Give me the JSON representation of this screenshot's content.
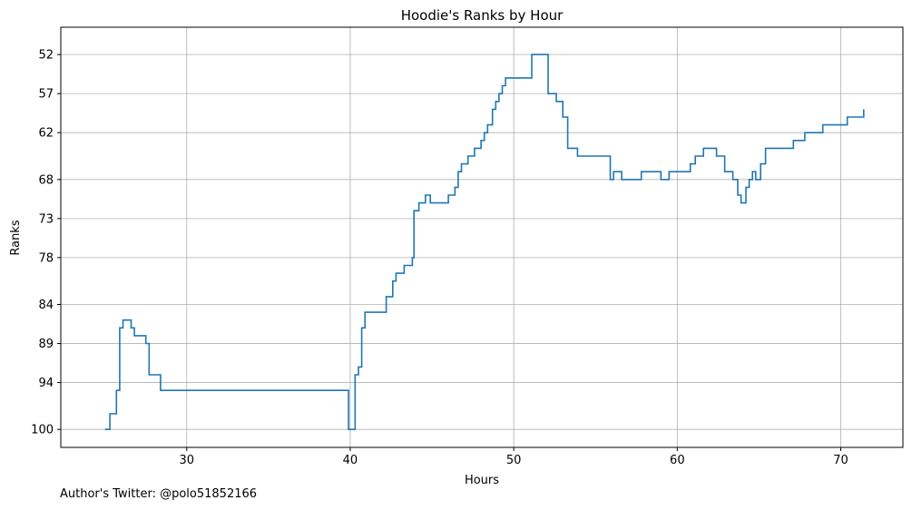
{
  "footer_text": "Author's Twitter: @polo51852166",
  "chart_data": {
    "type": "line",
    "step": true,
    "title": "Hoodie's Ranks by Hour",
    "xlabel": "Hours",
    "ylabel": "Ranks",
    "xlim": [
      22.3,
      73.8
    ],
    "ylim": [
      102.3,
      48.5
    ],
    "xticks": [
      30,
      40,
      50,
      60,
      70
    ],
    "yticks": [
      52,
      57,
      62,
      68,
      73,
      78,
      84,
      89,
      94,
      100
    ],
    "grid": true,
    "color": "#1f77b4",
    "series": [
      {
        "x": [
          25.0,
          25.3,
          25.7,
          25.9,
          26.1,
          26.6,
          26.8,
          27.2,
          27.5,
          27.7,
          28.4,
          34.1,
          39.9,
          40.3,
          40.5,
          40.7,
          40.9,
          41.9,
          42.2,
          42.6,
          42.8,
          43.3,
          43.8,
          43.9,
          44.2,
          44.6,
          44.9,
          46.0,
          46.4,
          46.6,
          46.8,
          47.2,
          47.6,
          47.8,
          48.0,
          48.2,
          48.4,
          48.7,
          48.9,
          49.1,
          49.3,
          49.5,
          50.8,
          51.1,
          51.9,
          52.1,
          52.6,
          52.8,
          53.0,
          53.3,
          53.9,
          55.7,
          55.9,
          56.1,
          56.6,
          57.8,
          59.0,
          59.5,
          60.8,
          61.1,
          61.6,
          62.4,
          62.9,
          63.4,
          63.7,
          63.9,
          64.2,
          64.4,
          64.6,
          64.8,
          65.1,
          65.4,
          65.6,
          67.1,
          67.8,
          68.9,
          70.4,
          71.4
        ],
        "y": [
          100,
          98,
          95,
          87,
          86,
          87,
          88,
          88,
          89,
          93,
          95,
          95,
          100,
          93,
          92,
          87,
          85,
          85,
          83,
          81,
          80,
          79,
          78,
          72,
          71,
          70,
          71,
          70,
          69,
          67,
          66,
          65,
          64,
          64,
          63,
          62,
          61,
          59,
          58,
          57,
          56,
          55,
          55,
          52,
          52,
          57,
          58,
          58,
          60,
          64,
          65,
          65,
          68,
          67,
          68,
          67,
          68,
          67,
          66,
          65,
          64,
          65,
          67,
          68,
          70,
          71,
          69,
          68,
          67,
          68,
          66,
          64,
          64,
          63,
          62,
          61,
          60,
          59
        ]
      }
    ]
  }
}
